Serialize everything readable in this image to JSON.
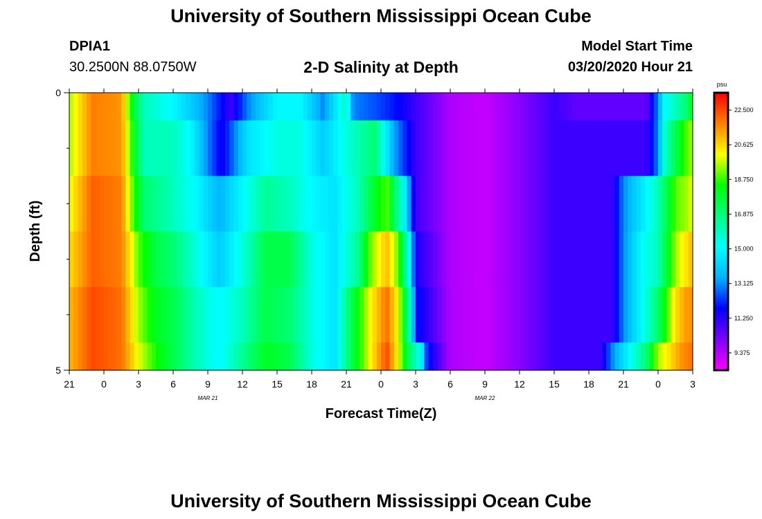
{
  "header": {
    "title": "University of Southern Mississippi Ocean Cube",
    "station": "DPIA1",
    "coords": "30.2500N 88.0750W",
    "plot_title": "2-D Salinity at Depth",
    "model_start_label": "Model Start Time",
    "model_start_value": "03/20/2020 Hour 21"
  },
  "footer": {
    "title": "University of Southern Mississippi Ocean Cube"
  },
  "colors": {
    "background": "#ffffff",
    "text": "#000000"
  },
  "chart_data": {
    "type": "heatmap",
    "title": "2-D Salinity at Depth",
    "xlabel": "Forecast Time(Z)",
    "ylabel": "Depth (ft)",
    "x_tick_labels": [
      "21",
      "0",
      "3",
      "6",
      "9",
      "12",
      "15",
      "18",
      "21",
      "0",
      "3",
      "6",
      "9",
      "12",
      "15",
      "18",
      "21",
      "0",
      "3"
    ],
    "x_date_labels": [
      {
        "text": "MAR  21",
        "at_hour": 12
      },
      {
        "text": "MAR  22",
        "at_hour": 36
      }
    ],
    "x_range_hours": [
      0,
      54
    ],
    "y_range": [
      0,
      5
    ],
    "y_tick_labels": [
      "0",
      "5"
    ],
    "y_minor_ticks": [
      1,
      2,
      3,
      4
    ],
    "colorbar": {
      "unit": "psu",
      "min": 8.4375,
      "max": 23.4375,
      "labels": [
        "22.500",
        "20.625",
        "18.750",
        "16.875",
        "15.000",
        "13.125",
        "11.250",
        "9.375"
      ],
      "colormap": [
        "#ff00ff",
        "#8000ff",
        "#0000ff",
        "#00b4ff",
        "#00ffff",
        "#00ff80",
        "#00ff00",
        "#ffff00",
        "#ff8000",
        "#ff0000"
      ]
    },
    "depth_layers": [
      {
        "depth_range": [
          0,
          0.5
        ],
        "knots": [
          [
            0,
            19.5
          ],
          [
            2,
            21.8
          ],
          [
            4.5,
            21.5
          ],
          [
            5.5,
            18
          ],
          [
            6.5,
            16
          ],
          [
            9,
            15
          ],
          [
            12,
            13
          ],
          [
            14,
            11
          ],
          [
            15.5,
            13
          ],
          [
            18,
            15
          ],
          [
            20,
            15
          ],
          [
            22,
            13
          ],
          [
            24,
            16
          ],
          [
            24.6,
            13
          ],
          [
            26.5,
            12.5
          ],
          [
            28,
            12
          ],
          [
            30,
            11
          ],
          [
            33,
            9.5
          ],
          [
            36,
            9.2
          ],
          [
            39,
            10
          ],
          [
            42,
            11
          ],
          [
            44,
            10.5
          ],
          [
            50,
            10.5
          ],
          [
            51,
            13
          ],
          [
            51.5,
            15
          ],
          [
            52.5,
            16
          ],
          [
            53.5,
            17
          ],
          [
            54,
            18.2
          ]
        ]
      },
      {
        "depth_range": [
          0.5,
          1.5
        ],
        "knots": [
          [
            0,
            19.5
          ],
          [
            2,
            21.8
          ],
          [
            4.5,
            21.5
          ],
          [
            5.5,
            18.5
          ],
          [
            6.5,
            16
          ],
          [
            9,
            16
          ],
          [
            10.5,
            15
          ],
          [
            12,
            13
          ],
          [
            13.2,
            11.5
          ],
          [
            15.5,
            14.5
          ],
          [
            18,
            15.5
          ],
          [
            20,
            15.5
          ],
          [
            22,
            14
          ],
          [
            24,
            15.5
          ],
          [
            26.5,
            17
          ],
          [
            28,
            13.5
          ],
          [
            30,
            11
          ],
          [
            33,
            9.5
          ],
          [
            36,
            9.2
          ],
          [
            39,
            10
          ],
          [
            42,
            11
          ],
          [
            45,
            11
          ],
          [
            50,
            11
          ],
          [
            51,
            13
          ],
          [
            51.5,
            15.5
          ],
          [
            52.5,
            17.5
          ],
          [
            53.5,
            19
          ],
          [
            54,
            19.5
          ]
        ]
      },
      {
        "depth_range": [
          1.5,
          2.5
        ],
        "knots": [
          [
            0,
            20
          ],
          [
            2,
            22.2
          ],
          [
            4.5,
            21.8
          ],
          [
            5.5,
            19
          ],
          [
            6.5,
            17
          ],
          [
            9,
            16
          ],
          [
            11,
            15
          ],
          [
            13,
            13.5
          ],
          [
            15,
            15
          ],
          [
            17,
            16.5
          ],
          [
            19,
            16
          ],
          [
            21,
            15
          ],
          [
            23,
            14.5
          ],
          [
            25,
            16
          ],
          [
            26.5,
            18
          ],
          [
            27.5,
            19
          ],
          [
            29,
            15
          ],
          [
            30,
            11
          ],
          [
            33,
            9.5
          ],
          [
            36,
            9.2
          ],
          [
            39,
            10
          ],
          [
            42,
            11
          ],
          [
            47,
            11
          ],
          [
            48,
            13
          ],
          [
            49.5,
            14.5
          ],
          [
            51,
            16
          ],
          [
            52.5,
            19
          ],
          [
            53.5,
            19.5
          ],
          [
            54,
            20
          ]
        ]
      },
      {
        "depth_range": [
          2.5,
          3.5
        ],
        "knots": [
          [
            0,
            20.5
          ],
          [
            2,
            22.2
          ],
          [
            4.5,
            21.8
          ],
          [
            6,
            19
          ],
          [
            7.5,
            17.5
          ],
          [
            9,
            17
          ],
          [
            11,
            15.5
          ],
          [
            13,
            14
          ],
          [
            15,
            15.5
          ],
          [
            17,
            17.5
          ],
          [
            19,
            17.5
          ],
          [
            21,
            15.5
          ],
          [
            23,
            14.5
          ],
          [
            25,
            16.5
          ],
          [
            26,
            19
          ],
          [
            27.5,
            21
          ],
          [
            28.5,
            19
          ],
          [
            29.5,
            15
          ],
          [
            30,
            11.5
          ],
          [
            33,
            9.5
          ],
          [
            36,
            9.2
          ],
          [
            39,
            10
          ],
          [
            42,
            11
          ],
          [
            47,
            11
          ],
          [
            48,
            13
          ],
          [
            49.5,
            15
          ],
          [
            51,
            16
          ],
          [
            52.5,
            19.5
          ],
          [
            53.5,
            20.5
          ],
          [
            54,
            21
          ]
        ]
      },
      {
        "depth_range": [
          3.5,
          4.5
        ],
        "knots": [
          [
            0,
            21
          ],
          [
            2,
            22.5
          ],
          [
            4.5,
            22
          ],
          [
            6,
            19.5
          ],
          [
            7.5,
            18
          ],
          [
            9,
            17.5
          ],
          [
            11,
            16
          ],
          [
            13,
            15
          ],
          [
            15,
            16
          ],
          [
            17,
            17.5
          ],
          [
            19,
            17
          ],
          [
            21,
            15.5
          ],
          [
            23,
            14.5
          ],
          [
            24.5,
            17.5
          ],
          [
            26,
            20
          ],
          [
            27.5,
            22
          ],
          [
            28.5,
            20
          ],
          [
            29.5,
            16
          ],
          [
            30,
            12
          ],
          [
            33,
            9.5
          ],
          [
            36,
            9.2
          ],
          [
            39,
            10
          ],
          [
            42,
            11
          ],
          [
            47,
            11
          ],
          [
            48,
            13
          ],
          [
            49.5,
            15
          ],
          [
            51,
            17
          ],
          [
            52.5,
            20.5
          ],
          [
            53.5,
            21.5
          ],
          [
            54,
            21.5
          ]
        ]
      },
      {
        "depth_range": [
          4.5,
          5
        ],
        "knots": [
          [
            0,
            21
          ],
          [
            2,
            22.5
          ],
          [
            4.5,
            22
          ],
          [
            6,
            20
          ],
          [
            7.5,
            18.5
          ],
          [
            9,
            17.5
          ],
          [
            11,
            16
          ],
          [
            13,
            15
          ],
          [
            15,
            16.5
          ],
          [
            17,
            18
          ],
          [
            19,
            17.5
          ],
          [
            21,
            15.5
          ],
          [
            23,
            14.5
          ],
          [
            24.5,
            17.5
          ],
          [
            26,
            20
          ],
          [
            27.5,
            22.5
          ],
          [
            28.5,
            20
          ],
          [
            29.5,
            17
          ],
          [
            30.5,
            15
          ],
          [
            31,
            12
          ],
          [
            33,
            9.5
          ],
          [
            36,
            9.2
          ],
          [
            39,
            10
          ],
          [
            42,
            11
          ],
          [
            46,
            11
          ],
          [
            47,
            13
          ],
          [
            48.5,
            15
          ],
          [
            50,
            17
          ],
          [
            51,
            19.5
          ],
          [
            53,
            21.5
          ],
          [
            54,
            22
          ]
        ]
      }
    ]
  }
}
